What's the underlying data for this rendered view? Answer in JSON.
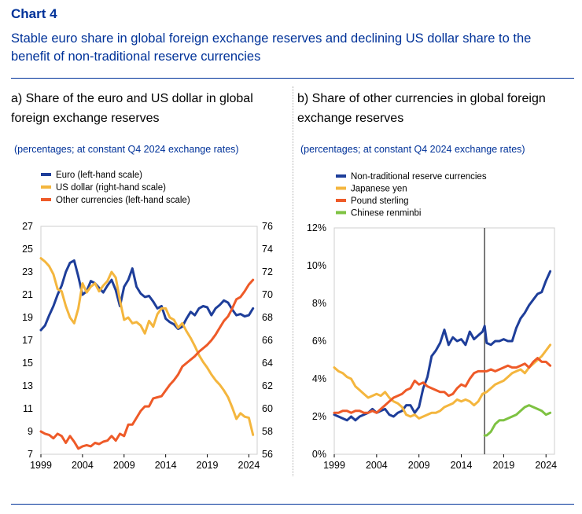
{
  "header": {
    "chart_number": "Chart 4",
    "title": "Stable euro share in global foreign exchange reserves and declining US dollar share to the benefit of non-traditional reserve currencies"
  },
  "colors": {
    "euro": "#1e3e9a",
    "usd": "#f4b63e",
    "other": "#ee5a28",
    "chinese": "#7ec242",
    "title": "#003299"
  },
  "chart_data": [
    {
      "type": "line",
      "title": "a) Share of the euro and US dollar in global foreign exchange reserves",
      "subtitle": "(percentages; at constant Q4 2024 exchange rates)",
      "x_ticks": [
        "1999",
        "2004",
        "2009",
        "2014",
        "2019",
        "2024"
      ],
      "x_range": [
        1999,
        2025
      ],
      "y_left": {
        "range": [
          7,
          27
        ],
        "ticks": [
          "7",
          "9",
          "11",
          "13",
          "15",
          "17",
          "19",
          "21",
          "23",
          "25",
          "27"
        ]
      },
      "y_right": {
        "range": [
          56,
          76
        ],
        "ticks": [
          "56",
          "58",
          "60",
          "62",
          "64",
          "66",
          "68",
          "70",
          "72",
          "74",
          "76"
        ]
      },
      "legend": "top-left",
      "series": [
        {
          "name": "Euro (left-hand scale)",
          "axis": "left",
          "color": "#1e3e9a",
          "x": [
            1999.0,
            1999.5,
            2000.0,
            2000.5,
            2001.0,
            2001.5,
            2002.0,
            2002.5,
            2003.0,
            2003.5,
            2004.0,
            2004.5,
            2005.0,
            2005.5,
            2006.0,
            2006.5,
            2007.0,
            2007.5,
            2008.0,
            2008.5,
            2009.0,
            2009.5,
            2010.0,
            2010.5,
            2011.0,
            2011.5,
            2012.0,
            2012.5,
            2013.0,
            2013.5,
            2014.0,
            2014.5,
            2015.0,
            2015.5,
            2016.0,
            2016.5,
            2017.0,
            2017.5,
            2018.0,
            2018.5,
            2019.0,
            2019.5,
            2020.0,
            2020.5,
            2021.0,
            2021.5,
            2022.0,
            2022.5,
            2023.0,
            2023.5,
            2024.0,
            2024.5
          ],
          "y": [
            17.9,
            18.3,
            19.2,
            20.0,
            21.0,
            21.8,
            23.0,
            23.8,
            24.0,
            22.6,
            21.0,
            21.3,
            22.2,
            22.0,
            21.6,
            21.2,
            21.8,
            22.3,
            21.4,
            20.0,
            21.7,
            22.3,
            23.3,
            21.7,
            21.1,
            20.8,
            20.9,
            20.4,
            19.8,
            20.0,
            18.9,
            18.6,
            18.4,
            18.0,
            18.2,
            18.9,
            19.5,
            19.2,
            19.8,
            20.0,
            19.9,
            19.2,
            19.8,
            20.1,
            20.5,
            20.3,
            19.7,
            19.2,
            19.3,
            19.1,
            19.2,
            19.8
          ]
        },
        {
          "name": "US dollar (right-hand scale)",
          "axis": "right",
          "color": "#f4b63e",
          "x": [
            1999.0,
            1999.5,
            2000.0,
            2000.5,
            2001.0,
            2001.5,
            2002.0,
            2002.5,
            2003.0,
            2003.5,
            2004.0,
            2004.5,
            2005.0,
            2005.5,
            2006.0,
            2006.5,
            2007.0,
            2007.5,
            2008.0,
            2008.5,
            2009.0,
            2009.5,
            2010.0,
            2010.5,
            2011.0,
            2011.5,
            2012.0,
            2012.5,
            2013.0,
            2013.5,
            2014.0,
            2014.5,
            2015.0,
            2015.5,
            2016.0,
            2016.5,
            2017.0,
            2017.5,
            2018.0,
            2018.5,
            2019.0,
            2019.5,
            2020.0,
            2020.5,
            2021.0,
            2021.5,
            2022.0,
            2022.5,
            2023.0,
            2023.5,
            2024.0,
            2024.5
          ],
          "y": [
            73.2,
            72.9,
            72.5,
            71.8,
            70.5,
            70.3,
            69.0,
            68.0,
            67.5,
            68.8,
            71.0,
            70.2,
            70.7,
            71.0,
            70.3,
            70.8,
            71.2,
            72.0,
            71.5,
            69.5,
            67.8,
            68.0,
            67.5,
            67.6,
            67.3,
            66.6,
            67.7,
            67.2,
            68.3,
            68.8,
            68.8,
            68.0,
            67.8,
            67.1,
            67.5,
            66.8,
            66.2,
            65.5,
            64.7,
            64.1,
            63.6,
            63.0,
            62.5,
            62.1,
            61.6,
            61.0,
            60.1,
            59.1,
            59.6,
            59.3,
            59.2,
            57.7
          ]
        },
        {
          "name": "Other currencies (left-hand scale)",
          "axis": "left",
          "color": "#ee5a28",
          "x": [
            1999.0,
            1999.5,
            2000.0,
            2000.5,
            2001.0,
            2001.5,
            2002.0,
            2002.5,
            2003.0,
            2003.5,
            2004.0,
            2004.5,
            2005.0,
            2005.5,
            2006.0,
            2006.5,
            2007.0,
            2007.5,
            2008.0,
            2008.5,
            2009.0,
            2009.5,
            2010.0,
            2010.5,
            2011.0,
            2011.5,
            2012.0,
            2012.5,
            2013.0,
            2013.5,
            2014.0,
            2014.5,
            2015.0,
            2015.5,
            2016.0,
            2016.5,
            2017.0,
            2017.5,
            2018.0,
            2018.5,
            2019.0,
            2019.5,
            2020.0,
            2020.5,
            2021.0,
            2021.5,
            2022.0,
            2022.5,
            2023.0,
            2023.5,
            2024.0,
            2024.5
          ],
          "y": [
            9.0,
            8.8,
            8.7,
            8.4,
            8.8,
            8.6,
            8.0,
            8.6,
            8.1,
            7.5,
            7.7,
            7.8,
            7.7,
            8.0,
            7.9,
            8.1,
            8.2,
            8.6,
            8.2,
            8.8,
            8.6,
            9.6,
            9.6,
            10.2,
            10.8,
            11.2,
            11.2,
            11.9,
            12.0,
            12.1,
            12.6,
            13.1,
            13.5,
            14.0,
            14.7,
            15.0,
            15.3,
            15.6,
            16.0,
            16.3,
            16.6,
            17.0,
            17.5,
            18.1,
            18.7,
            19.1,
            19.8,
            20.6,
            20.8,
            21.3,
            21.9,
            22.3
          ]
        }
      ]
    },
    {
      "type": "line",
      "title": "b) Share of other currencies in global foreign exchange reserves",
      "subtitle": "(percentages; at constant Q4 2024 exchange rates)",
      "x_ticks": [
        "1999",
        "2004",
        "2009",
        "2014",
        "2019",
        "2024"
      ],
      "x_range": [
        1999,
        2025
      ],
      "y": {
        "range": [
          0,
          12
        ],
        "ticks": [
          "0%",
          "2%",
          "4%",
          "6%",
          "8%",
          "10%",
          "12%"
        ]
      },
      "vertical_marker_x": 2016.75,
      "legend": "top-left",
      "series": [
        {
          "name": "Non-traditional reserve currencies",
          "color": "#1e3e9a",
          "x": [
            1999.0,
            1999.5,
            2000.0,
            2000.5,
            2001.0,
            2001.5,
            2002.0,
            2002.5,
            2003.0,
            2003.5,
            2004.0,
            2004.5,
            2005.0,
            2005.5,
            2006.0,
            2006.5,
            2007.0,
            2007.5,
            2008.0,
            2008.5,
            2009.0,
            2009.5,
            2010.0,
            2010.5,
            2011.0,
            2011.5,
            2012.0,
            2012.5,
            2013.0,
            2013.5,
            2014.0,
            2014.5,
            2015.0,
            2015.5,
            2016.0,
            2016.5,
            2016.75,
            2017.0,
            2017.5,
            2018.0,
            2018.5,
            2019.0,
            2019.5,
            2020.0,
            2020.5,
            2021.0,
            2021.5,
            2022.0,
            2022.5,
            2023.0,
            2023.5,
            2024.0,
            2024.5
          ],
          "y": [
            2.1,
            2.0,
            1.9,
            1.8,
            2.0,
            1.8,
            2.0,
            2.1,
            2.2,
            2.4,
            2.2,
            2.3,
            2.4,
            2.1,
            2.0,
            2.2,
            2.3,
            2.6,
            2.6,
            2.2,
            2.5,
            3.5,
            4.1,
            5.2,
            5.5,
            5.9,
            6.6,
            5.8,
            6.2,
            6.0,
            6.1,
            5.8,
            6.5,
            6.1,
            6.3,
            6.5,
            6.8,
            5.9,
            5.8,
            6.0,
            6.0,
            6.1,
            6.0,
            6.0,
            6.7,
            7.2,
            7.5,
            7.9,
            8.2,
            8.5,
            8.6,
            9.2,
            9.7
          ]
        },
        {
          "name": "Japanese yen",
          "color": "#f4b63e",
          "x": [
            1999.0,
            1999.5,
            2000.0,
            2000.5,
            2001.0,
            2001.5,
            2002.0,
            2002.5,
            2003.0,
            2003.5,
            2004.0,
            2004.5,
            2005.0,
            2005.5,
            2006.0,
            2006.5,
            2007.0,
            2007.5,
            2008.0,
            2008.5,
            2009.0,
            2009.5,
            2010.0,
            2010.5,
            2011.0,
            2011.5,
            2012.0,
            2012.5,
            2013.0,
            2013.5,
            2014.0,
            2014.5,
            2015.0,
            2015.5,
            2016.0,
            2016.5,
            2017.0,
            2017.5,
            2018.0,
            2018.5,
            2019.0,
            2019.5,
            2020.0,
            2020.5,
            2021.0,
            2021.5,
            2022.0,
            2022.5,
            2023.0,
            2023.5,
            2024.0,
            2024.5
          ],
          "y": [
            4.6,
            4.4,
            4.3,
            4.1,
            4.0,
            3.6,
            3.4,
            3.2,
            3.0,
            3.1,
            3.2,
            3.1,
            3.3,
            3.0,
            2.8,
            2.7,
            2.5,
            2.1,
            2.0,
            2.1,
            1.9,
            2.0,
            2.1,
            2.2,
            2.2,
            2.3,
            2.5,
            2.6,
            2.7,
            2.9,
            2.8,
            2.9,
            2.8,
            2.6,
            2.8,
            3.2,
            3.3,
            3.5,
            3.7,
            3.8,
            3.9,
            4.1,
            4.3,
            4.4,
            4.5,
            4.3,
            4.6,
            4.8,
            5.0,
            5.2,
            5.5,
            5.8
          ]
        },
        {
          "name": "Pound sterling",
          "color": "#ee5a28",
          "x": [
            1999.0,
            1999.5,
            2000.0,
            2000.5,
            2001.0,
            2001.5,
            2002.0,
            2002.5,
            2003.0,
            2003.5,
            2004.0,
            2004.5,
            2005.0,
            2005.5,
            2006.0,
            2006.5,
            2007.0,
            2007.5,
            2008.0,
            2008.5,
            2009.0,
            2009.5,
            2010.0,
            2010.5,
            2011.0,
            2011.5,
            2012.0,
            2012.5,
            2013.0,
            2013.5,
            2014.0,
            2014.5,
            2015.0,
            2015.5,
            2016.0,
            2016.5,
            2017.0,
            2017.5,
            2018.0,
            2018.5,
            2019.0,
            2019.5,
            2020.0,
            2020.5,
            2021.0,
            2021.5,
            2022.0,
            2022.5,
            2023.0,
            2023.5,
            2024.0,
            2024.5
          ],
          "y": [
            2.2,
            2.2,
            2.3,
            2.3,
            2.2,
            2.3,
            2.3,
            2.2,
            2.2,
            2.3,
            2.2,
            2.4,
            2.6,
            2.8,
            3.0,
            3.1,
            3.2,
            3.4,
            3.5,
            3.9,
            3.7,
            3.8,
            3.6,
            3.5,
            3.4,
            3.3,
            3.3,
            3.1,
            3.2,
            3.5,
            3.7,
            3.6,
            4.0,
            4.3,
            4.4,
            4.4,
            4.4,
            4.5,
            4.4,
            4.5,
            4.6,
            4.7,
            4.6,
            4.6,
            4.7,
            4.8,
            4.6,
            4.9,
            5.1,
            4.9,
            4.9,
            4.7
          ]
        },
        {
          "name": "Chinese renminbi",
          "color": "#7ec242",
          "x": [
            2016.75,
            2017.0,
            2017.5,
            2018.0,
            2018.5,
            2019.0,
            2019.5,
            2020.0,
            2020.5,
            2021.0,
            2021.5,
            2022.0,
            2022.5,
            2023.0,
            2023.5,
            2024.0,
            2024.5
          ],
          "y": [
            1.0,
            1.0,
            1.2,
            1.6,
            1.8,
            1.8,
            1.9,
            2.0,
            2.1,
            2.3,
            2.5,
            2.6,
            2.5,
            2.4,
            2.3,
            2.1,
            2.2
          ]
        }
      ]
    }
  ]
}
